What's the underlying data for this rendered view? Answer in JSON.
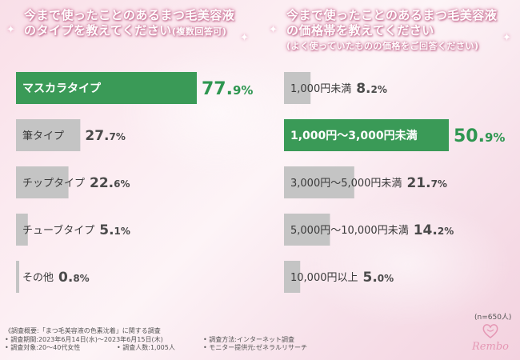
{
  "chart_data": [
    {
      "type": "bar",
      "orientation": "horizontal",
      "title_lines": [
        "今まで使ったことのあるまつ毛美容液",
        "のタイプを教えてください"
      ],
      "title_note": "(複数回答可)",
      "categories": [
        "マスカラタイプ",
        "筆タイプ",
        "チップタイプ",
        "チューブタイプ",
        "その他"
      ],
      "values": [
        77.9,
        27.7,
        22.6,
        5.1,
        0.8
      ],
      "value_labels": [
        {
          "int": "77.",
          "dec": "9",
          "unit": "%"
        },
        {
          "int": "27.",
          "dec": "7",
          "unit": "%"
        },
        {
          "int": "22.",
          "dec": "6",
          "unit": "%"
        },
        {
          "int": "5.",
          "dec": "1",
          "unit": "%"
        },
        {
          "int": "0.",
          "dec": "8",
          "unit": "%"
        }
      ],
      "highlight_index": 0,
      "xlim": [
        0,
        77.9
      ]
    },
    {
      "type": "bar",
      "orientation": "horizontal",
      "title_lines": [
        "今まで使ったことのあるまつ毛美容液",
        "の価格帯を教えてください"
      ],
      "title_note": "(よく使っていたものの価格をご回答ください)",
      "categories": [
        "1,000円未満",
        "1,000円〜3,000円未満",
        "3,000円〜5,000円未満",
        "5,000円〜10,000円未満",
        "10,000円以上"
      ],
      "values": [
        8.2,
        50.9,
        21.7,
        14.2,
        5.0
      ],
      "value_labels": [
        {
          "int": "8.",
          "dec": "2",
          "unit": "%"
        },
        {
          "int": "50.",
          "dec": "9",
          "unit": "%"
        },
        {
          "int": "21.",
          "dec": "7",
          "unit": "%"
        },
        {
          "int": "14.",
          "dec": "2",
          "unit": "%"
        },
        {
          "int": "5.",
          "dec": "0",
          "unit": "%"
        }
      ],
      "highlight_index": 1,
      "xlim": [
        0,
        50.9
      ]
    }
  ],
  "colors": {
    "highlight": "#3a9a57",
    "bar": "#c4c4c4",
    "highlight_value": "#2e9650",
    "value": "#4a4a4a"
  },
  "sample_note": "(n=650人)",
  "footer": {
    "line1": "《調査概要:「まつ毛美容液の色素沈着」に関する調査",
    "period": "• 調査期間:2023年6月14日(水)〜2023年6月15日(木)",
    "method": "• 調査方法:インターネット調査",
    "target": "• 調査対象:20〜40代女性",
    "count": "• 調査人数:1,005人",
    "provider": "• モニター提供元:ゼネラルリサーチ"
  },
  "logo": {
    "text": "Rembo",
    "icon": "heart-eye-logo-icon"
  }
}
